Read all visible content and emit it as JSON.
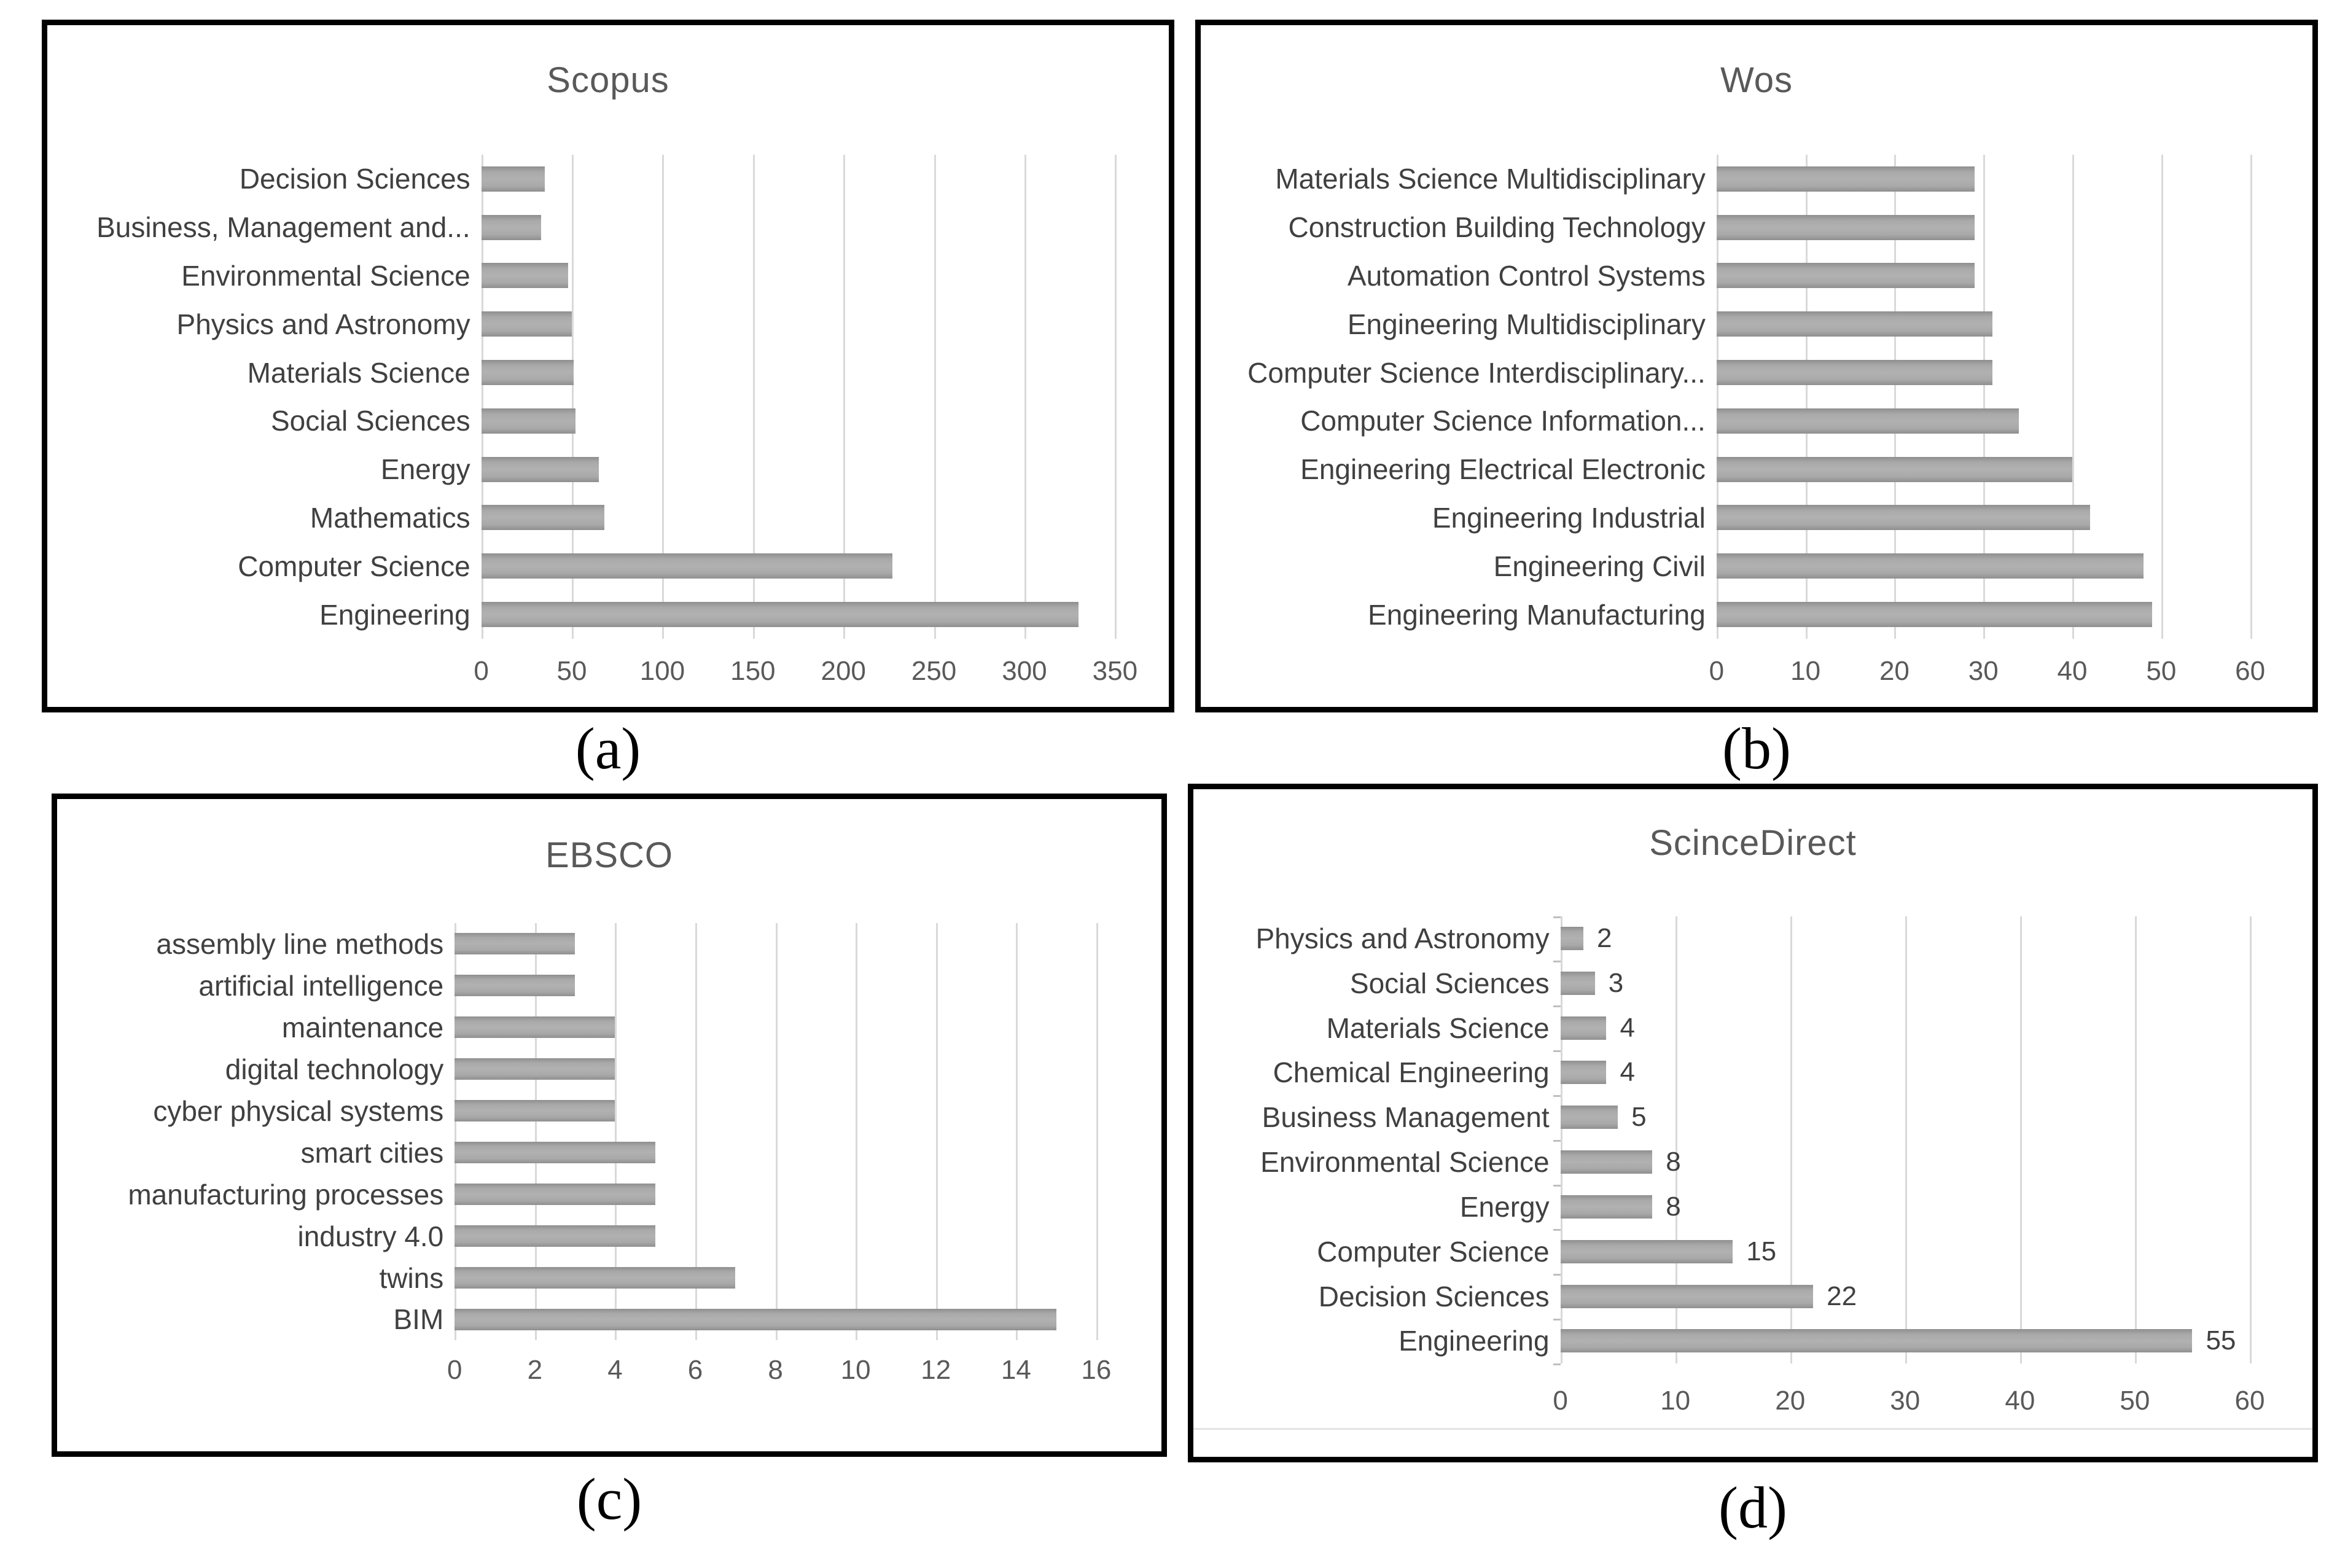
{
  "captions": {
    "a": "(a)",
    "b": "(b)",
    "c": "(c)",
    "d": "(d)"
  },
  "colors": {
    "background": "#ffffff",
    "box_border": "#000000",
    "title": "#595959",
    "category_label": "#404040",
    "tick_label": "#595959",
    "value_label": "#404040",
    "bar": "#a6a6a6",
    "gridline": "#d9d9d9"
  },
  "chart_data": [
    {
      "id": "a",
      "type": "bar",
      "orientation": "horizontal",
      "title": "Scopus",
      "categories": [
        "Decision Sciences",
        "Business, Management and...",
        "Environmental Science",
        "Physics and Astronomy",
        "Materials Science",
        "Social Sciences",
        "Energy",
        "Mathematics",
        "Computer Science",
        "Engineering"
      ],
      "values": [
        35,
        33,
        48,
        50,
        51,
        52,
        65,
        68,
        227,
        330
      ],
      "xlim": [
        0,
        350
      ],
      "xticks": [
        0,
        50,
        100,
        150,
        200,
        250,
        300,
        350
      ],
      "grid": true,
      "show_value_labels": false,
      "legend": "none"
    },
    {
      "id": "b",
      "type": "bar",
      "orientation": "horizontal",
      "title": "Wos",
      "categories": [
        "Materials Science Multidisciplinary",
        "Construction Building Technology",
        "Automation Control Systems",
        "Engineering Multidisciplinary",
        "Computer Science Interdisciplinary...",
        "Computer Science Information...",
        "Engineering Electrical Electronic",
        "Engineering Industrial",
        "Engineering Civil",
        "Engineering Manufacturing"
      ],
      "values": [
        29,
        29,
        29,
        31,
        31,
        34,
        40,
        42,
        48,
        49
      ],
      "xlim": [
        0,
        60
      ],
      "xticks": [
        0,
        10,
        20,
        30,
        40,
        50,
        60
      ],
      "grid": true,
      "show_value_labels": false,
      "legend": "none"
    },
    {
      "id": "c",
      "type": "bar",
      "orientation": "horizontal",
      "title": "EBSCO",
      "categories": [
        "assembly line methods",
        "artificial intelligence",
        "maintenance",
        "digital technology",
        "cyber physical systems",
        "smart cities",
        "manufacturing processes",
        "industry 4.0",
        "twins",
        "BIM"
      ],
      "values": [
        3,
        3,
        4,
        4,
        4,
        5,
        5,
        5,
        7,
        15
      ],
      "xlim": [
        0,
        16
      ],
      "xticks": [
        0,
        2,
        4,
        6,
        8,
        10,
        12,
        14,
        16
      ],
      "grid": true,
      "show_value_labels": false,
      "legend": "none"
    },
    {
      "id": "d",
      "type": "bar",
      "orientation": "horizontal",
      "title": "ScinceDirect",
      "categories": [
        "Physics and Astronomy",
        "Social Sciences",
        "Materials Science",
        "Chemical Engineering",
        "Business Management",
        "Environmental Science",
        "Energy",
        "Computer Science",
        "Decision Sciences",
        "Engineering"
      ],
      "values": [
        2,
        3,
        4,
        4,
        5,
        8,
        8,
        15,
        22,
        55
      ],
      "value_labels": [
        "2",
        "3",
        "4",
        "4",
        "5",
        "8",
        "8",
        "15",
        "22",
        "55"
      ],
      "xlim": [
        0,
        60
      ],
      "xticks": [
        0,
        10,
        20,
        30,
        40,
        50,
        60
      ],
      "grid": true,
      "show_value_labels": true,
      "legend": "none"
    }
  ]
}
